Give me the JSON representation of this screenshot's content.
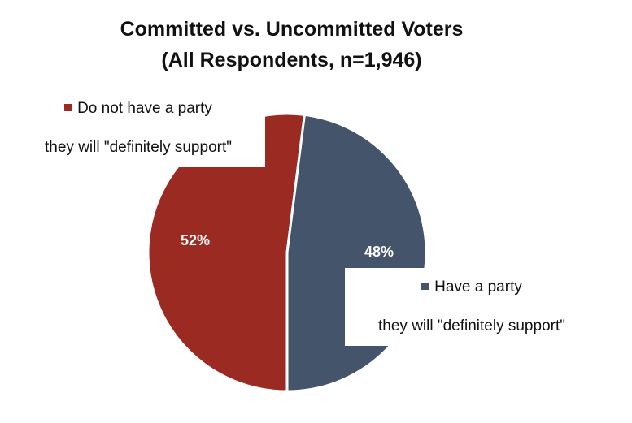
{
  "chart_data": {
    "type": "pie",
    "title": "Committed vs. Uncommitted Voters",
    "subtitle": "(All Respondents, n=1,946)",
    "categories": [
      "Do not have a party\nthey will \"definitely support\"",
      "Have a party\nthey will \"definitely support\""
    ],
    "values": [
      52,
      48
    ],
    "value_labels": [
      "52%",
      "48%"
    ],
    "colors": [
      "#9b2a22",
      "#44546a"
    ]
  }
}
